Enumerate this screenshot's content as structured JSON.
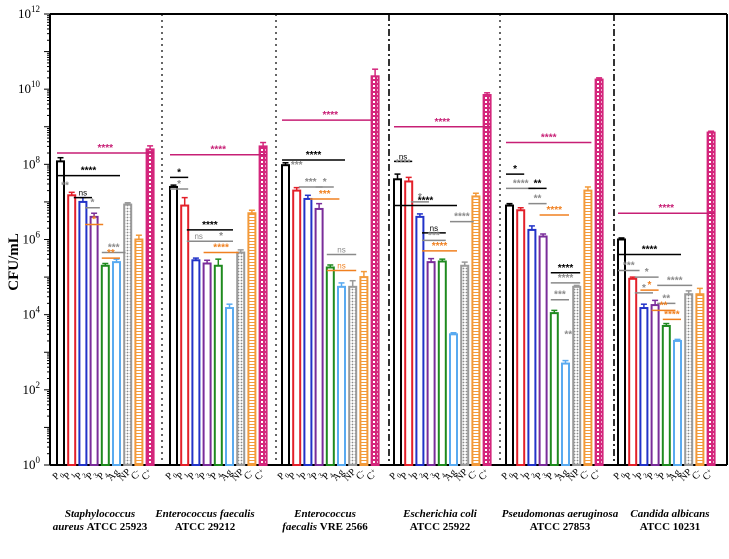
{
  "chart_data": {
    "type": "bar",
    "y_scale": "log10",
    "ylabel": "CFU/mL",
    "ylim": [
      1,
      1000000000000
    ],
    "y_ticks": [
      {
        "value": 1,
        "base": "10",
        "exp": "0"
      },
      {
        "value": 100,
        "base": "10",
        "exp": "2"
      },
      {
        "value": 10000,
        "base": "10",
        "exp": "4"
      },
      {
        "value": 1000000,
        "base": "10",
        "exp": "6"
      },
      {
        "value": 100000000,
        "base": "10",
        "exp": "8"
      },
      {
        "value": 10000000000,
        "base": "10",
        "exp": "10"
      },
      {
        "value": 1000000000000,
        "base": "10",
        "exp": "12"
      }
    ],
    "categories": [
      "P0",
      "P1",
      "P2",
      "P3",
      "P4",
      "Ag",
      "NP",
      "C-",
      "C+"
    ],
    "series_colors": {
      "P0": "#000000",
      "P1": "#e3202a",
      "P2": "#2233c8",
      "P3": "#7a2d9a",
      "P4": "#1f8a1f",
      "Ag": "#5aaaf0",
      "NP": "#9a9a9a",
      "C-": "#f39a3a",
      "C+": "#d4267c"
    },
    "significance_colors": {
      "black": "#000000",
      "gray": "#8a8a8a",
      "orange": "#f08020",
      "magenta": "#c71f75"
    },
    "groups": [
      {
        "name_line1": "Staphylococcus",
        "name_line2_italic": "aureus",
        "name_line2_rest": "ATCC 25923",
        "values": [
          120000000,
          15000000,
          10000000,
          4000000,
          200000,
          250000,
          8500000,
          1000000,
          250000000
        ],
        "errors": [
          30000000,
          3000000,
          3000000,
          1000000,
          30000,
          50000,
          1000000,
          300000,
          60000000
        ],
        "marks": [
          {
            "text": "****",
            "color": "magenta",
            "y": 200000000,
            "from": 0,
            "to": 8
          },
          {
            "text": "****",
            "color": "black",
            "y": 50000000,
            "from": 0,
            "to": 5
          },
          {
            "text": "**",
            "color": "gray",
            "y": 20000000,
            "from": 0,
            "to": 0.8,
            "label_only": true
          },
          {
            "text": "ns",
            "color": "black",
            "y": 13000000,
            "from": 1.5,
            "to": 2.5
          },
          {
            "text": "*",
            "color": "gray",
            "y": 7000000,
            "from": 2.5,
            "to": 3.2
          },
          {
            "text": "*",
            "color": "orange",
            "y": 2500000,
            "from": 2.5,
            "to": 3.5
          },
          {
            "text": "***",
            "color": "gray",
            "y": 450000,
            "from": 4,
            "to": 5.5
          },
          {
            "text": "**",
            "color": "orange",
            "y": 320000,
            "from": 4,
            "to": 5
          }
        ]
      },
      {
        "name_line1": "Enterococcus faecalis",
        "name_line2_italic": "",
        "name_line2_rest": "ATCC 29212",
        "values": [
          25000000,
          8000000,
          280000,
          230000,
          200000,
          15000,
          450000,
          5000000,
          300000000
        ],
        "errors": [
          3000000,
          5000000,
          40000,
          50000,
          100000,
          4000,
          80000,
          1000000,
          80000000
        ],
        "marks": [
          {
            "text": "****",
            "color": "magenta",
            "y": 180000000,
            "from": 0,
            "to": 8
          },
          {
            "text": "*",
            "color": "black",
            "y": 45000000,
            "from": 0,
            "to": 1
          },
          {
            "text": "*",
            "color": "gray",
            "y": 22000000,
            "from": 0,
            "to": 1
          },
          {
            "text": "****",
            "color": "black",
            "y": 1800000,
            "from": 1.5,
            "to": 5
          },
          {
            "text": "ns",
            "color": "gray",
            "y": 900000,
            "from": 1.5,
            "to": 3
          },
          {
            "text": "*",
            "color": "gray",
            "y": 900000,
            "from": 3.5,
            "to": 5
          },
          {
            "text": "****",
            "color": "orange",
            "y": 450000,
            "from": 3,
            "to": 5.5
          }
        ]
      },
      {
        "name_line1": "Enterococcus",
        "name_line2_italic": "faecalis",
        "name_line2_rest": "VRE 2566",
        "values": [
          95000000,
          20000000,
          12000000,
          6500000,
          180000,
          55000,
          55000,
          100000,
          22000000000
        ],
        "errors": [
          15000000,
          4000000,
          3000000,
          2500000,
          30000,
          15000,
          25000,
          40000,
          12000000000
        ],
        "marks": [
          {
            "text": "****",
            "color": "magenta",
            "y": 1500000000,
            "from": 0,
            "to": 8
          },
          {
            "text": "****",
            "color": "black",
            "y": 130000000,
            "from": 0,
            "to": 5
          },
          {
            "text": "***",
            "color": "gray",
            "y": 70000000,
            "from": 0.6,
            "to": 1.4,
            "label_only": true
          },
          {
            "text": "***",
            "color": "gray",
            "y": 25000000,
            "from": 1.5,
            "to": 3
          },
          {
            "text": "*",
            "color": "gray",
            "y": 25000000,
            "from": 3,
            "to": 4
          },
          {
            "text": "***",
            "color": "orange",
            "y": 12000000,
            "from": 2.5,
            "to": 4.5
          },
          {
            "text": "ns",
            "color": "gray",
            "y": 400000,
            "from": 4,
            "to": 6
          },
          {
            "text": "ns",
            "color": "orange",
            "y": 150000,
            "from": 4,
            "to": 6
          }
        ]
      },
      {
        "name_line1": "Escherichia coli",
        "name_line2_italic": "",
        "name_line2_rest": "ATCC 25922",
        "values": [
          40000000,
          35000000,
          4000000,
          250000,
          260000,
          3000,
          200000,
          14000000,
          7000000000
        ],
        "errors": [
          15000000,
          10000000,
          800000,
          60000,
          40000,
          300,
          50000,
          3000000,
          1000000000
        ],
        "marks": [
          {
            "text": "****",
            "color": "magenta",
            "y": 1000000000,
            "from": 0,
            "to": 8
          },
          {
            "text": "ns",
            "color": "black",
            "y": 120000000,
            "from": 0,
            "to": 1
          },
          {
            "text": "****",
            "color": "gray",
            "y": 80000000,
            "from": 0,
            "to": 1,
            "label_only": true
          },
          {
            "text": "*",
            "color": "gray",
            "y": 10000000,
            "from": 1.5,
            "to": 2.5
          },
          {
            "text": "****",
            "color": "black",
            "y": 8000000,
            "from": 0,
            "to": 5
          },
          {
            "text": "****",
            "color": "gray",
            "y": 3000000,
            "from": 5,
            "to": 6.5
          },
          {
            "text": "ns",
            "color": "black",
            "y": 1500000,
            "from": 2.5,
            "to": 4
          },
          {
            "text": "***",
            "color": "gray",
            "y": 950000,
            "from": 2.5,
            "to": 4
          },
          {
            "text": "****",
            "color": "orange",
            "y": 500000,
            "from": 2.5,
            "to": 5
          }
        ]
      },
      {
        "name_line1": "Pseudomonas aeruginosa",
        "name_line2_italic": "",
        "name_line2_rest": "ATCC 27853",
        "values": [
          8000000,
          6000000,
          1800000,
          1200000,
          11000,
          500,
          55000,
          20000000,
          18000000000
        ],
        "errors": [
          1000000,
          1000000,
          500000,
          200000,
          2000,
          100,
          5000,
          5000000,
          2000000000
        ],
        "marks": [
          {
            "text": "****",
            "color": "magenta",
            "y": 380000000,
            "from": 0,
            "to": 7
          },
          {
            "text": "*",
            "color": "black",
            "y": 55000000,
            "from": 0,
            "to": 1
          },
          {
            "text": "****",
            "color": "gray",
            "y": 23000000,
            "from": 0,
            "to": 2
          },
          {
            "text": "**",
            "color": "black",
            "y": 23000000,
            "from": 2,
            "to": 3
          },
          {
            "text": "**",
            "color": "gray",
            "y": 9000000,
            "from": 2,
            "to": 3
          },
          {
            "text": "****",
            "color": "orange",
            "y": 4500000,
            "from": 3,
            "to": 5
          },
          {
            "text": "****",
            "color": "black",
            "y": 130000,
            "from": 4,
            "to": 6
          },
          {
            "text": "****",
            "color": "gray",
            "y": 70000,
            "from": 4,
            "to": 6
          },
          {
            "text": "***",
            "color": "gray",
            "y": 25000,
            "from": 4,
            "to": 5
          },
          {
            "text": "**",
            "color": "gray",
            "y": 2200,
            "from": 5,
            "to": 5.5,
            "label_only": true
          }
        ]
      },
      {
        "name_line1": "Candida albicans",
        "name_line2_italic": "",
        "name_line2_rest": "ATCC 10231",
        "values": [
          1000000,
          90000,
          15000,
          18000,
          5000,
          2000,
          35000,
          35000,
          700000000
        ],
        "errors": [
          100000,
          10000,
          4000,
          6000,
          800,
          200,
          8000,
          15000,
          60000000
        ],
        "marks": [
          {
            "text": "****",
            "color": "magenta",
            "y": 5000000,
            "from": 0,
            "to": 8
          },
          {
            "text": "****",
            "color": "black",
            "y": 400000,
            "from": 0,
            "to": 5
          },
          {
            "text": "***",
            "color": "gray",
            "y": 150000,
            "from": 0,
            "to": 1.3
          },
          {
            "text": "*",
            "color": "gray",
            "y": 100000,
            "from": 1.5,
            "to": 3
          },
          {
            "text": "****",
            "color": "gray",
            "y": 60000,
            "from": 3.5,
            "to": 6
          },
          {
            "text": "*",
            "color": "orange",
            "y": 45000,
            "from": 2,
            "to": 3
          },
          {
            "text": "*",
            "color": "gray",
            "y": 38000,
            "from": 1.5,
            "to": 2.5
          },
          {
            "text": "**",
            "color": "gray",
            "y": 20000,
            "from": 3.5,
            "to": 4.5
          },
          {
            "text": "**",
            "color": "orange",
            "y": 13000,
            "from": 3,
            "to": 4.5
          },
          {
            "text": "****",
            "color": "orange",
            "y": 7500,
            "from": 4,
            "to": 5
          }
        ]
      }
    ]
  }
}
